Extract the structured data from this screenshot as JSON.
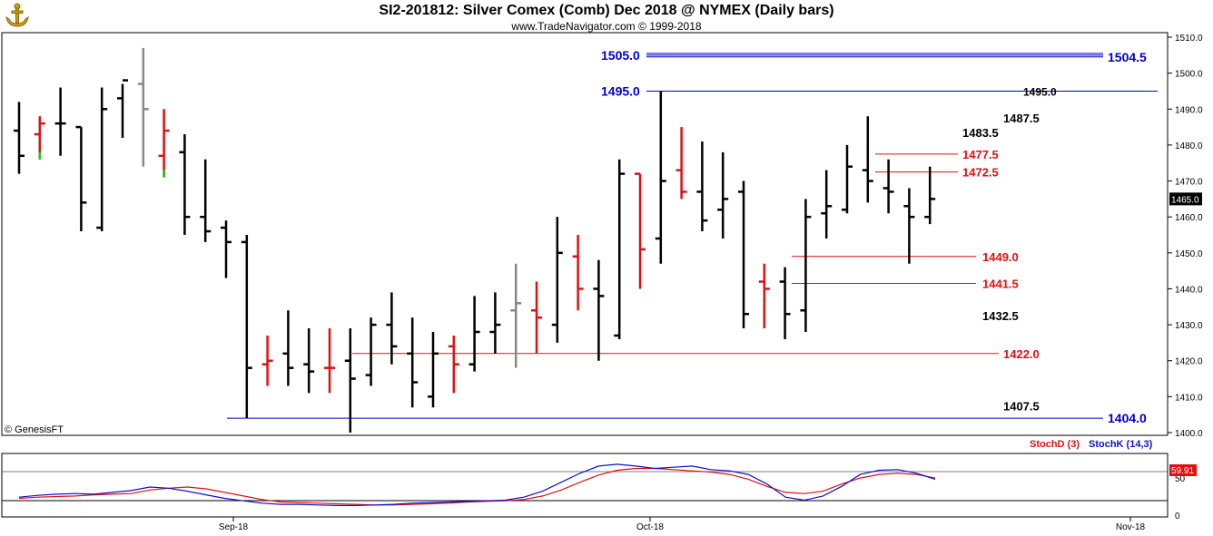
{
  "header": {
    "title": "SI2-201812:  Silver Comex (Comb) Dec 2018 @ NYMEX  (Daily bars)",
    "subtitle": "www.TradeNavigator.com © 1999-2018",
    "logo_icon": "anchor-icon"
  },
  "copyright": "© GenesisFT",
  "colors": {
    "up": "#000000",
    "down": "#e01010",
    "neutral": "#888888",
    "green": "#11cc11",
    "blue": "#0000cc",
    "red": "#e01010",
    "stochD": "#e01010",
    "stochK": "#1010cc"
  },
  "chart_data": {
    "type": "ohlc",
    "title": "SI2-201812:  Silver Comex (Comb) Dec 2018 @ NYMEX  (Daily bars)",
    "price_axis": {
      "min": 1400,
      "max": 1510,
      "ticks": [
        "1400.0",
        "1410.0",
        "1420.0",
        "1430.0",
        "1440.0",
        "1450.0",
        "1460.0",
        "1470.0",
        "1480.0",
        "1490.0",
        "1500.0",
        "1510.0"
      ],
      "last_price_label": "1465.0",
      "last_price": 1465.0
    },
    "date_axis": {
      "labels": [
        "Sep-18",
        "Oct-18",
        "Nov-18"
      ]
    },
    "bars": [
      {
        "o": 1484,
        "h": 1492,
        "l": 1472,
        "c": 1477,
        "color": "up"
      },
      {
        "o": 1483,
        "h": 1488,
        "l": 1476,
        "c": 1486,
        "color": "mixed"
      },
      {
        "o": 1486,
        "h": 1496,
        "l": 1477,
        "c": 1486,
        "color": "up"
      },
      {
        "o": 1485,
        "h": 1485,
        "l": 1456,
        "c": 1464,
        "color": "up"
      },
      {
        "o": 1457,
        "h": 1496,
        "l": 1456,
        "c": 1490,
        "color": "up"
      },
      {
        "o": 1493,
        "h": 1497,
        "l": 1482,
        "c": 1498,
        "color": "up"
      },
      {
        "o": 1497,
        "h": 1507,
        "l": 1474,
        "c": 1490,
        "color": "neutral"
      },
      {
        "o": 1477,
        "h": 1490,
        "l": 1471,
        "c": 1484,
        "color": "mixed"
      },
      {
        "o": 1478,
        "h": 1483,
        "l": 1455,
        "c": 1460,
        "color": "up"
      },
      {
        "o": 1460,
        "h": 1476,
        "l": 1453,
        "c": 1456,
        "color": "up"
      },
      {
        "o": 1457,
        "h": 1459,
        "l": 1443,
        "c": 1453,
        "color": "up"
      },
      {
        "o": 1453,
        "h": 1455,
        "l": 1404,
        "c": 1418,
        "color": "up"
      },
      {
        "o": 1419,
        "h": 1427,
        "l": 1413,
        "c": 1420,
        "color": "down"
      },
      {
        "o": 1422,
        "h": 1434,
        "l": 1413,
        "c": 1418,
        "color": "up"
      },
      {
        "o": 1419,
        "h": 1429,
        "l": 1411,
        "c": 1417,
        "color": "up"
      },
      {
        "o": 1418,
        "h": 1429,
        "l": 1411,
        "c": 1418,
        "color": "down"
      },
      {
        "o": 1420,
        "h": 1429,
        "l": 1400,
        "c": 1415,
        "color": "up"
      },
      {
        "o": 1416,
        "h": 1432,
        "l": 1413,
        "c": 1430,
        "color": "up"
      },
      {
        "o": 1430,
        "h": 1439,
        "l": 1419,
        "c": 1424,
        "color": "up"
      },
      {
        "o": 1422,
        "h": 1432,
        "l": 1407,
        "c": 1414,
        "color": "up"
      },
      {
        "o": 1410,
        "h": 1428,
        "l": 1407,
        "c": 1422,
        "color": "up"
      },
      {
        "o": 1424,
        "h": 1427,
        "l": 1411,
        "c": 1419,
        "color": "down"
      },
      {
        "o": 1419,
        "h": 1438,
        "l": 1417,
        "c": 1428,
        "color": "up"
      },
      {
        "o": 1428,
        "h": 1439,
        "l": 1422,
        "c": 1430,
        "color": "up"
      },
      {
        "o": 1434,
        "h": 1447,
        "l": 1418,
        "c": 1436,
        "color": "neutral"
      },
      {
        "o": 1434,
        "h": 1442,
        "l": 1422,
        "c": 1432,
        "color": "down"
      },
      {
        "o": 1430,
        "h": 1460,
        "l": 1425,
        "c": 1450,
        "color": "up"
      },
      {
        "o": 1449,
        "h": 1455,
        "l": 1434,
        "c": 1440,
        "color": "down"
      },
      {
        "o": 1440,
        "h": 1448,
        "l": 1420,
        "c": 1438,
        "color": "up"
      },
      {
        "o": 1427,
        "h": 1476,
        "l": 1426,
        "c": 1472,
        "color": "up"
      },
      {
        "o": 1472,
        "h": 1472,
        "l": 1440,
        "c": 1451,
        "color": "down"
      },
      {
        "o": 1454,
        "h": 1495,
        "l": 1447,
        "c": 1470,
        "color": "up"
      },
      {
        "o": 1473,
        "h": 1485,
        "l": 1465,
        "c": 1467,
        "color": "down"
      },
      {
        "o": 1467,
        "h": 1481,
        "l": 1456,
        "c": 1459,
        "color": "up"
      },
      {
        "o": 1462,
        "h": 1478,
        "l": 1454,
        "c": 1465,
        "color": "up"
      },
      {
        "o": 1467,
        "h": 1470,
        "l": 1429,
        "c": 1433,
        "color": "up"
      },
      {
        "o": 1442,
        "h": 1447,
        "l": 1429,
        "c": 1440,
        "color": "down"
      },
      {
        "o": 1442,
        "h": 1446,
        "l": 1426,
        "c": 1433,
        "color": "up"
      },
      {
        "o": 1434,
        "h": 1465,
        "l": 1428,
        "c": 1460,
        "color": "up"
      },
      {
        "o": 1461,
        "h": 1473,
        "l": 1454,
        "c": 1463,
        "color": "up"
      },
      {
        "o": 1462,
        "h": 1480,
        "l": 1461,
        "c": 1474,
        "color": "up"
      },
      {
        "o": 1473,
        "h": 1488,
        "l": 1464,
        "c": 1470,
        "color": "up"
      },
      {
        "o": 1468,
        "h": 1476,
        "l": 1461,
        "c": 1467,
        "color": "up"
      },
      {
        "o": 1463,
        "h": 1468,
        "l": 1447,
        "c": 1460,
        "color": "up"
      },
      {
        "o": 1460,
        "h": 1474,
        "l": 1458,
        "c": 1465,
        "color": "up"
      }
    ],
    "levels": [
      {
        "label": "1505.0",
        "price": 1505.0,
        "color": "blue",
        "side": "left"
      },
      {
        "label": "1504.5",
        "price": 1504.5,
        "color": "blue",
        "side": "right"
      },
      {
        "label": "1495.0",
        "price": 1495.0,
        "color": "blue",
        "side": "left"
      },
      {
        "label": "1495.0",
        "price": 1495.0,
        "color": "black",
        "side": "right"
      },
      {
        "label": "1487.5",
        "price": 1487.5,
        "color": "black",
        "side": "right"
      },
      {
        "label": "1483.5",
        "price": 1483.5,
        "color": "black",
        "side": "right"
      },
      {
        "label": "1477.5",
        "price": 1477.5,
        "color": "red",
        "side": "right"
      },
      {
        "label": "1472.5",
        "price": 1472.5,
        "color": "red",
        "side": "right"
      },
      {
        "label": "1449.0",
        "price": 1449.0,
        "color": "red",
        "side": "right"
      },
      {
        "label": "1441.5",
        "price": 1441.5,
        "color": "red",
        "side": "right"
      },
      {
        "label": "1432.5",
        "price": 1432.5,
        "color": "black",
        "side": "right"
      },
      {
        "label": "1422.0",
        "price": 1422.0,
        "color": "red",
        "side": "right"
      },
      {
        "label": "1407.5",
        "price": 1407.5,
        "color": "black",
        "side": "right"
      },
      {
        "label": "1404.0",
        "price": 1404.0,
        "color": "blue",
        "side": "right"
      }
    ],
    "stochastic": {
      "legend_d": "StochD (3)",
      "legend_k": "StochK (14,3)",
      "axis_labels": [
        "0",
        "50"
      ],
      "last_value_label": "59.91",
      "D": [
        28,
        30,
        31,
        32,
        34,
        35,
        36,
        42,
        45,
        47,
        44,
        38,
        32,
        26,
        22,
        21,
        20,
        19,
        18,
        17,
        17,
        18,
        19,
        20,
        22,
        23,
        24,
        26,
        32,
        42,
        55,
        67,
        75,
        78,
        78,
        76,
        74,
        72,
        68,
        60,
        48,
        38,
        36,
        40,
        52,
        62,
        68,
        70,
        68,
        62
      ],
      "K": [
        30,
        33,
        35,
        36,
        35,
        38,
        41,
        47,
        45,
        40,
        34,
        28,
        24,
        20,
        18,
        18,
        17,
        16,
        16,
        17,
        18,
        20,
        21,
        22,
        23,
        24,
        25,
        30,
        40,
        55,
        70,
        82,
        85,
        82,
        78,
        80,
        82,
        76,
        74,
        68,
        52,
        30,
        25,
        32,
        48,
        68,
        75,
        76,
        70,
        60
      ]
    }
  }
}
